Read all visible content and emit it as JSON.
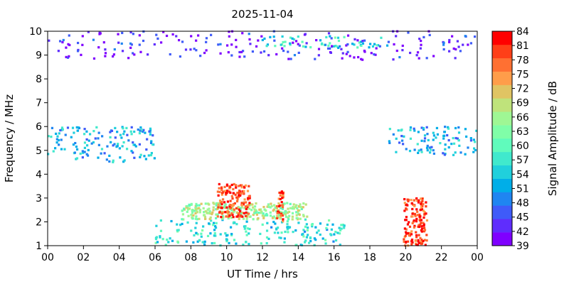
{
  "chart_data": {
    "type": "heatmap",
    "title": "2025-11-04",
    "xlabel": "UT Time / hrs",
    "ylabel": "Frequency / MHz",
    "colorbar_label": "Signal Amplitude / dB",
    "xlim": [
      0,
      24
    ],
    "ylim": [
      1,
      10
    ],
    "x_ticks": [
      "00",
      "02",
      "04",
      "06",
      "08",
      "10",
      "12",
      "14",
      "16",
      "18",
      "20",
      "22",
      "00"
    ],
    "y_ticks": [
      "1",
      "2",
      "3",
      "4",
      "5",
      "6",
      "7",
      "8",
      "9",
      "10"
    ],
    "color_range": [
      39,
      84
    ],
    "colorbar_ticks": [
      "39",
      "42",
      "45",
      "48",
      "51",
      "54",
      "57",
      "60",
      "63",
      "66",
      "69",
      "72",
      "75",
      "78",
      "81",
      "84"
    ],
    "colorbar_colors": [
      "#7f00ff",
      "#5f2dfd",
      "#3f5bf9",
      "#1f85f1",
      "#00aee8",
      "#20d0dc",
      "#40e9cd",
      "#60fbbc",
      "#80fea8",
      "#9ff794",
      "#bfe37b",
      "#e0c463",
      "#ff9d4a",
      "#ff7032",
      "#ff3f18",
      "#ff0000"
    ],
    "grid": false,
    "regions": [
      {
        "x": [
          6.0,
          16.6
        ],
        "y": [
          1.0,
          2.1
        ],
        "level": 56,
        "desc": "low-frequency daytime band"
      },
      {
        "x": [
          7.5,
          14.5
        ],
        "y": [
          2.1,
          2.8
        ],
        "level": 66,
        "desc": "mid band dome"
      },
      {
        "x": [
          9.5,
          11.3
        ],
        "y": [
          2.2,
          3.6
        ],
        "level": 80,
        "desc": "peak near 10-11 UT"
      },
      {
        "x": [
          12.8,
          13.2
        ],
        "y": [
          2.0,
          3.3
        ],
        "level": 78,
        "desc": "spike near 13 UT"
      },
      {
        "x": [
          19.9,
          21.2
        ],
        "y": [
          1.0,
          3.0
        ],
        "level": 80,
        "desc": "evening burst near 20-21 UT"
      },
      {
        "x": [
          0.0,
          6.0
        ],
        "y": [
          4.5,
          6.0
        ],
        "level": 52,
        "desc": "night band"
      },
      {
        "x": [
          19.0,
          24.0
        ],
        "y": [
          4.8,
          6.0
        ],
        "level": 52,
        "desc": "night band"
      },
      {
        "x": [
          12.0,
          19.0
        ],
        "y": [
          9.3,
          9.8
        ],
        "level": 56,
        "desc": "high-frequency band"
      },
      {
        "x": [
          0.0,
          24.0
        ],
        "y": [
          8.8,
          10.0
        ],
        "level": 42,
        "desc": "sparse top noise"
      }
    ]
  }
}
